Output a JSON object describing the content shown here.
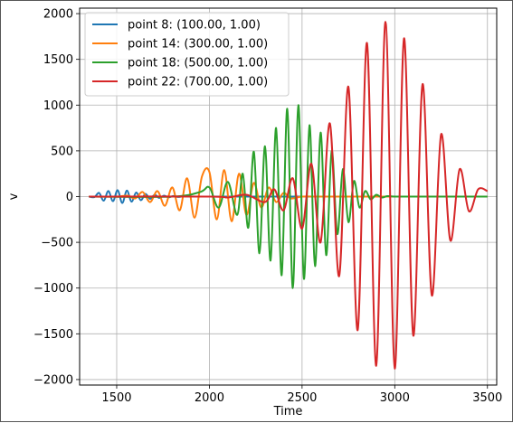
{
  "chart_data": {
    "type": "line",
    "title": "",
    "xlabel": "Time",
    "ylabel": "v",
    "xlim": [
      1300,
      3550
    ],
    "ylim": [
      -2060,
      2060
    ],
    "xticks": [
      1500,
      2000,
      2500,
      3000,
      3500
    ],
    "yticks": [
      -2000,
      -1500,
      -1000,
      -500,
      0,
      500,
      1000,
      1500,
      2000
    ],
    "xtick_labels": [
      "1500",
      "2000",
      "2500",
      "3000",
      "3500"
    ],
    "ytick_labels": [
      "−2000",
      "−1500",
      "−1000",
      "−500",
      "0",
      "500",
      "1000",
      "1500",
      "2000"
    ],
    "grid": true,
    "legend_position": "top-left",
    "series": [
      {
        "name": "point 8: (100.00, 1.00)",
        "color": "#1f77b4",
        "x": [
          1350,
          1380,
          1405,
          1430,
          1455,
          1480,
          1505,
          1530,
          1555,
          1580,
          1605,
          1630,
          1655,
          1680,
          1705,
          1730,
          1755,
          1780,
          1805,
          1830,
          1860,
          1900,
          2000,
          2200,
          2500,
          2800,
          3100,
          3500
        ],
        "values": [
          0,
          -5,
          40,
          -45,
          60,
          -50,
          70,
          -70,
          65,
          -55,
          45,
          -40,
          30,
          -25,
          20,
          -15,
          10,
          -8,
          6,
          -4,
          2,
          0,
          0,
          0,
          0,
          0,
          0,
          0
        ]
      },
      {
        "name": "point 14: (300.00, 1.00)",
        "color": "#ff7f0e",
        "x": [
          1350,
          1500,
          1560,
          1600,
          1640,
          1680,
          1720,
          1760,
          1800,
          1840,
          1880,
          1920,
          1960,
          2000,
          2040,
          2080,
          2120,
          2160,
          2200,
          2240,
          2280,
          2320,
          2360,
          2400,
          2440,
          2500,
          2600,
          3000,
          3500
        ],
        "values": [
          0,
          0,
          10,
          -20,
          50,
          -60,
          60,
          -100,
          100,
          -150,
          200,
          -230,
          220,
          270,
          -250,
          290,
          -270,
          250,
          -200,
          150,
          -120,
          100,
          -60,
          40,
          -20,
          0,
          0,
          0,
          0
        ]
      },
      {
        "name": "point 18: (500.00, 1.00)",
        "color": "#2ca02c",
        "x": [
          1350,
          1800,
          1950,
          2000,
          2050,
          2100,
          2150,
          2180,
          2210,
          2240,
          2270,
          2300,
          2330,
          2360,
          2390,
          2420,
          2450,
          2480,
          2510,
          2540,
          2570,
          2600,
          2630,
          2660,
          2690,
          2720,
          2750,
          2780,
          2810,
          2840,
          2870,
          2900,
          2930,
          2960,
          3000,
          3100,
          3500
        ],
        "values": [
          0,
          0,
          50,
          100,
          -120,
          160,
          -200,
          250,
          -340,
          490,
          -620,
          550,
          -700,
          750,
          -860,
          960,
          -1000,
          1000,
          -900,
          780,
          -760,
          700,
          -640,
          500,
          -410,
          300,
          -280,
          170,
          -120,
          60,
          -30,
          20,
          -10,
          5,
          0,
          0,
          0
        ]
      },
      {
        "name": "point 22: (700.00, 1.00)",
        "color": "#d62728",
        "x": [
          1350,
          2000,
          2100,
          2200,
          2300,
          2350,
          2400,
          2450,
          2500,
          2550,
          2600,
          2650,
          2700,
          2750,
          2800,
          2850,
          2900,
          2950,
          3000,
          3050,
          3100,
          3150,
          3200,
          3250,
          3300,
          3350,
          3400,
          3450,
          3500
        ],
        "values": [
          0,
          0,
          -10,
          20,
          -60,
          80,
          -150,
          200,
          -350,
          360,
          -500,
          800,
          -870,
          1200,
          -1460,
          1680,
          -1850,
          1910,
          -1880,
          1730,
          -1520,
          1230,
          -1080,
          680,
          -480,
          300,
          -160,
          80,
          60
        ]
      }
    ]
  }
}
